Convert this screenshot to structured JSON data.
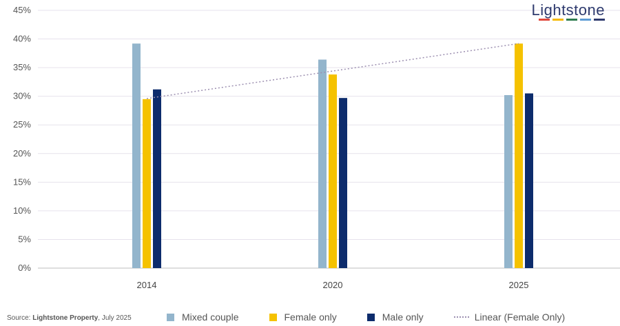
{
  "brand": {
    "logo_text": "Lightstone",
    "logo_bar_colors": [
      "#e0483c",
      "#f5b800",
      "#2e7d4f",
      "#5c9bd5",
      "#2e3a6e"
    ]
  },
  "source": {
    "prefix": "Source: ",
    "bold": "Lightstone Property",
    "suffix": ", July 2025"
  },
  "chart_data": {
    "type": "bar",
    "categories": [
      "2014",
      "2020",
      "2025"
    ],
    "ylim": [
      0,
      45
    ],
    "yticks": [
      "0%",
      "5%",
      "10%",
      "15%",
      "20%",
      "25%",
      "30%",
      "35%",
      "40%",
      "45%"
    ],
    "ytick_values": [
      0,
      5,
      10,
      15,
      20,
      25,
      30,
      35,
      40,
      45
    ],
    "grid": true,
    "legend_position": "bottom",
    "series": [
      {
        "name": "Mixed couple",
        "color": "#93b5cc",
        "values": [
          39.2,
          36.4,
          30.2
        ]
      },
      {
        "name": "Female only",
        "color": "#f5c200",
        "values": [
          29.5,
          33.8,
          39.2
        ]
      },
      {
        "name": "Male only",
        "color": "#0d2c6c",
        "values": [
          31.2,
          29.7,
          30.5
        ]
      }
    ],
    "trendline": {
      "name": "Linear (Female Only)",
      "color": "#9c8fb0",
      "values": [
        29.6,
        34.4,
        39.2
      ]
    }
  }
}
